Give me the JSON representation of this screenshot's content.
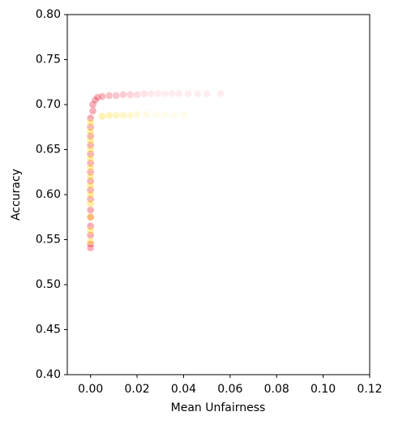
{
  "chart_data": {
    "type": "scatter",
    "xlabel": "Mean Unfairness",
    "ylabel": "Accuracy",
    "xlim": [
      -0.01,
      0.12
    ],
    "ylim": [
      0.4,
      0.8
    ],
    "xticks": [
      {
        "value": 0,
        "label": "0.00"
      },
      0.02,
      0.04,
      0.06,
      0.08,
      {
        "value": 0.1,
        "label": "0.10"
      },
      0.12
    ],
    "yticks": [
      {
        "value": 0.4,
        "label": "0.40"
      },
      0.45,
      {
        "value": 0.5,
        "label": "0.50"
      },
      0.55,
      {
        "value": 0.6,
        "label": "0.60"
      },
      0.65,
      {
        "value": 0.7,
        "label": "0.70"
      },
      0.75,
      {
        "value": 0.8,
        "label": "0.80"
      }
    ],
    "series": [
      {
        "color": "#e8152e",
        "x": [
          0,
          0,
          0,
          0,
          0,
          0,
          0,
          0,
          0,
          0,
          0,
          0,
          0,
          0,
          0,
          0,
          0.001,
          0.001,
          0.002,
          0.003,
          0.005,
          0.008,
          0.011,
          0.014,
          0.017,
          0.02,
          0.023,
          0.026,
          0.029,
          0.032,
          0.035,
          0.038,
          0.042,
          0.046,
          0.05,
          0.056
        ],
        "y": [
          0.541,
          0.545,
          0.555,
          0.565,
          0.575,
          0.583,
          0.595,
          0.605,
          0.615,
          0.625,
          0.635,
          0.645,
          0.655,
          0.665,
          0.675,
          0.685,
          0.693,
          0.7,
          0.705,
          0.708,
          0.709,
          0.71,
          0.71,
          0.711,
          0.711,
          0.711,
          0.712,
          0.712,
          0.712,
          0.712,
          0.712,
          0.712,
          0.712,
          0.712,
          0.712,
          0.712
        ]
      },
      {
        "color": "#ffd400",
        "x": [
          0,
          0,
          0,
          0,
          0,
          0,
          0,
          0,
          0,
          0,
          0,
          0,
          0,
          0.005,
          0.008,
          0.011,
          0.014,
          0.017,
          0.02,
          0.024,
          0.028,
          0.032,
          0.036,
          0.04
        ],
        "y": [
          0.548,
          0.56,
          0.575,
          0.59,
          0.6,
          0.61,
          0.62,
          0.63,
          0.64,
          0.65,
          0.66,
          0.67,
          0.68,
          0.687,
          0.688,
          0.688,
          0.688,
          0.688,
          0.689,
          0.689,
          0.689,
          0.689,
          0.689,
          0.689
        ]
      }
    ]
  }
}
